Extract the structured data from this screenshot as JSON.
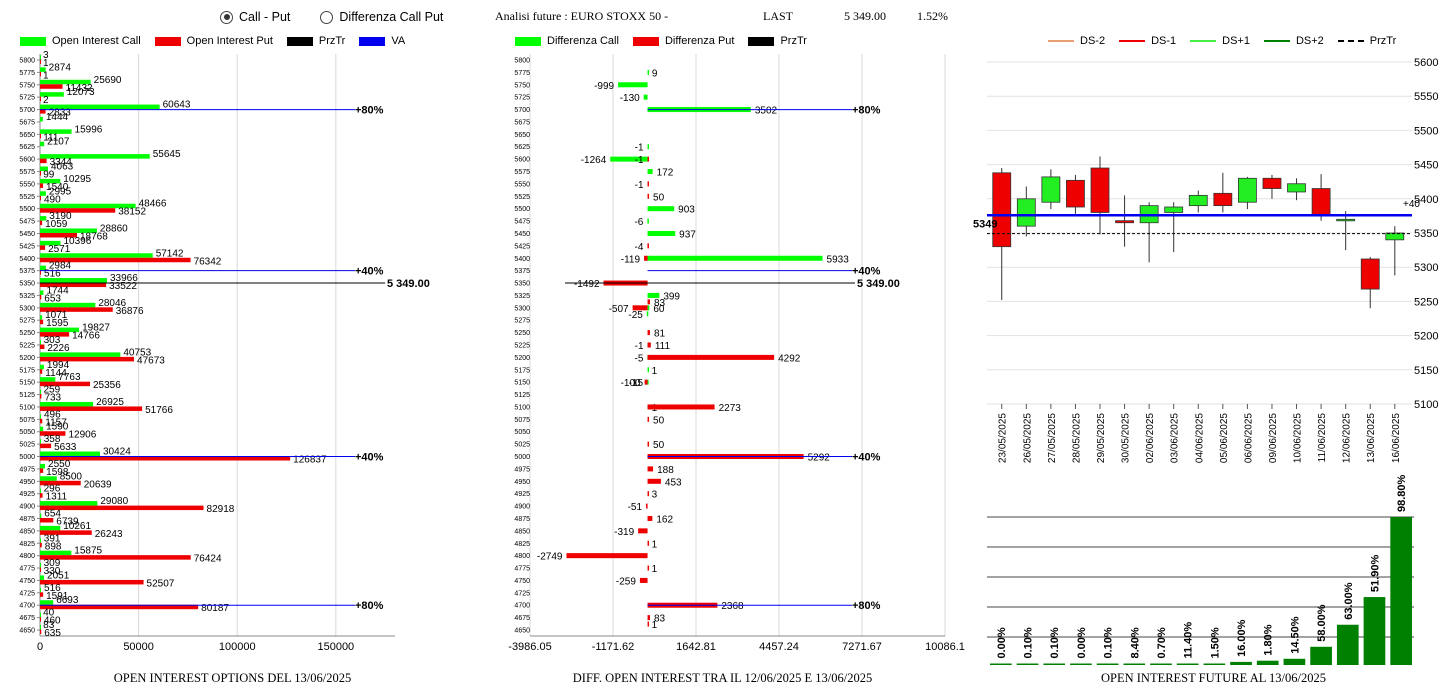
{
  "controls": {
    "radio_call_put": "Call - Put",
    "radio_diff": "Differenza Call Put"
  },
  "header": {
    "title": "Analisi future : EURO STOXX 50 -",
    "last_label": "LAST",
    "last_value": "5 349.00",
    "change": "1.52%"
  },
  "colors": {
    "green": "#00ff00",
    "red": "#ee0000",
    "blue": "#0000ee",
    "darkgreen": "#008000",
    "orange": "#e8a070"
  },
  "chart_data": [
    {
      "type": "bar",
      "orientation": "horizontal",
      "caption": "OPEN INTEREST OPTIONS DEL 13/06/2025",
      "legend": [
        "Open Interest Call",
        "Open Interest Put",
        "PrzTr",
        "VA"
      ],
      "strikes": [
        5800,
        5775,
        5750,
        5725,
        5700,
        5675,
        5650,
        5625,
        5600,
        5575,
        5550,
        5525,
        5500,
        5475,
        5450,
        5425,
        5400,
        5375,
        5350,
        5325,
        5300,
        5275,
        5250,
        5225,
        5200,
        5175,
        5150,
        5125,
        5100,
        5075,
        5050,
        5025,
        5000,
        4975,
        4950,
        4925,
        4900,
        4875,
        4850,
        4825,
        4800,
        4775,
        4750,
        4725,
        4700,
        4675,
        4650
      ],
      "call": [
        3,
        2874,
        25690,
        12073,
        60643,
        1444,
        15996,
        2107,
        55645,
        4063,
        10295,
        2995,
        48466,
        3190,
        28860,
        10396,
        57142,
        2984,
        33966,
        1744,
        28046,
        1071,
        19827,
        303,
        40753,
        1994,
        7763,
        259,
        26925,
        496,
        1590,
        358,
        30424,
        2550,
        8500,
        296,
        29080,
        654,
        10261,
        391,
        15875,
        309,
        2051,
        516,
        6693,
        40,
        83
      ],
      "put": [
        1,
        1,
        11432,
        2,
        2833,
        0,
        111,
        0,
        3344,
        99,
        1540,
        490,
        38152,
        1059,
        18768,
        2571,
        76342,
        516,
        33522,
        653,
        36876,
        1595,
        14766,
        2226,
        47673,
        1144,
        25356,
        733,
        51766,
        1157,
        12906,
        5633,
        126837,
        1598,
        20639,
        1311,
        82918,
        6739,
        26243,
        898,
        76424,
        330,
        52507,
        1591,
        80187,
        460,
        635
      ],
      "xaxis": {
        "ticks": [
          "0",
          "50000",
          "100000",
          "150000"
        ],
        "max": 180000
      },
      "levels": [
        {
          "strike": 5700,
          "label": "80%"
        },
        {
          "strike": 5375,
          "label": "40%"
        },
        {
          "strike": 5000,
          "label": "40%"
        },
        {
          "strike": 4700,
          "label": "80%"
        }
      ],
      "przTr": {
        "strike": 5350,
        "label": "5 349.00"
      }
    },
    {
      "type": "bar",
      "orientation": "horizontal",
      "caption": "DIFF. OPEN INTEREST TRA IL 12/06/2025 E 13/06/2025",
      "legend": [
        "Differenza Call",
        "Differenza Put",
        "PrzTr"
      ],
      "strikes": [
        5800,
        5775,
        5750,
        5725,
        5700,
        5675,
        5650,
        5625,
        5600,
        5575,
        5550,
        5525,
        5500,
        5475,
        5450,
        5425,
        5400,
        5375,
        5350,
        5325,
        5300,
        5275,
        5250,
        5225,
        5200,
        5175,
        5150,
        5125,
        5100,
        5075,
        5050,
        5025,
        5000,
        4975,
        4950,
        4925,
        4900,
        4875,
        4850,
        4825,
        4800,
        4775,
        4750,
        4725,
        4700,
        4675,
        4650
      ],
      "values": [
        {
          "s": 5775,
          "v": 9,
          "c": "call"
        },
        {
          "s": 5750,
          "v": -999,
          "c": "call"
        },
        {
          "s": 5725,
          "v": -130,
          "c": "call"
        },
        {
          "s": 5700,
          "v": 3502,
          "c": "call"
        },
        {
          "s": 5625,
          "v": -1,
          "c": "call"
        },
        {
          "s": 5600,
          "v": -1264,
          "c": "call"
        },
        {
          "s": 5600,
          "v": -1,
          "c": "put"
        },
        {
          "s": 5575,
          "v": 172,
          "c": "call"
        },
        {
          "s": 5550,
          "v": -1,
          "c": "put"
        },
        {
          "s": 5525,
          "v": 50,
          "c": "put"
        },
        {
          "s": 5500,
          "v": 903,
          "c": "call"
        },
        {
          "s": 5475,
          "v": -6,
          "c": "call"
        },
        {
          "s": 5450,
          "v": 937,
          "c": "call"
        },
        {
          "s": 5425,
          "v": -4,
          "c": "put"
        },
        {
          "s": 5400,
          "v": 5933,
          "c": "call"
        },
        {
          "s": 5400,
          "v": -119,
          "c": "put"
        },
        {
          "s": 5350,
          "v": -1492,
          "c": "put"
        },
        {
          "s": 5325,
          "v": 399,
          "c": "call"
        },
        {
          "s": 5312,
          "v": 83,
          "c": "put"
        },
        {
          "s": 5300,
          "v": -507,
          "c": "put"
        },
        {
          "s": 5300,
          "v": 60,
          "c": "call"
        },
        {
          "s": 5288,
          "v": -25,
          "c": "call"
        },
        {
          "s": 5250,
          "v": 81,
          "c": "put"
        },
        {
          "s": 5225,
          "v": -1,
          "c": "call"
        },
        {
          "s": 5225,
          "v": 111,
          "c": "put"
        },
        {
          "s": 5200,
          "v": -5,
          "c": "call"
        },
        {
          "s": 5200,
          "v": 4292,
          "c": "put"
        },
        {
          "s": 5175,
          "v": 1,
          "c": "call"
        },
        {
          "s": 5150,
          "v": -15,
          "c": "call"
        },
        {
          "s": 5150,
          "v": -100,
          "c": "put"
        },
        {
          "s": 5100,
          "v": 1,
          "c": "call"
        },
        {
          "s": 5100,
          "v": 2273,
          "c": "put"
        },
        {
          "s": 5075,
          "v": 50,
          "c": "put"
        },
        {
          "s": 5025,
          "v": 50,
          "c": "put"
        },
        {
          "s": 5000,
          "v": 5292,
          "c": "put"
        },
        {
          "s": 4975,
          "v": 188,
          "c": "put"
        },
        {
          "s": 4950,
          "v": 453,
          "c": "put"
        },
        {
          "s": 4925,
          "v": 3,
          "c": "put"
        },
        {
          "s": 4900,
          "v": -51,
          "c": "put"
        },
        {
          "s": 4875,
          "v": 162,
          "c": "put"
        },
        {
          "s": 4850,
          "v": -319,
          "c": "put"
        },
        {
          "s": 4825,
          "v": 1,
          "c": "put"
        },
        {
          "s": 4800,
          "v": -2749,
          "c": "put"
        },
        {
          "s": 4775,
          "v": 1,
          "c": "put"
        },
        {
          "s": 4750,
          "v": -259,
          "c": "put"
        },
        {
          "s": 4700,
          "v": 2368,
          "c": "put"
        },
        {
          "s": 4675,
          "v": 83,
          "c": "put"
        },
        {
          "s": 4662,
          "v": 1,
          "c": "put"
        }
      ],
      "xaxis": {
        "ticks": [
          "-3986.05",
          "-1171.62",
          "1642.81",
          "4457.24",
          "7271.67",
          "10086.1"
        ],
        "min": -3986.05,
        "max": 10086.1
      },
      "levels": [
        {
          "strike": 5700,
          "label": "80%"
        },
        {
          "strike": 5375,
          "label": "40%"
        },
        {
          "strike": 5000,
          "label": "40%"
        },
        {
          "strike": 4700,
          "label": "80%"
        }
      ],
      "przTr": {
        "strike": 5350,
        "label": "5 349.00"
      }
    },
    {
      "type": "candlestick",
      "legend": [
        "DS-2",
        "DS-1",
        "DS+1",
        "DS+2",
        "PrzTr"
      ],
      "dates": [
        "23/05/2025",
        "26/05/2025",
        "27/05/2025",
        "28/05/2025",
        "29/05/2025",
        "30/05/2025",
        "02/06/2025",
        "03/06/2025",
        "04/06/2025",
        "05/06/2025",
        "06/06/2025",
        "09/06/2025",
        "10/06/2025",
        "11/06/2025",
        "12/06/2025",
        "13/06/2025",
        "16/06/2025"
      ],
      "candles": [
        {
          "o": 5438,
          "c": 5330,
          "h": 5445,
          "l": 5252
        },
        {
          "o": 5360,
          "c": 5400,
          "h": 5418,
          "l": 5345
        },
        {
          "o": 5395,
          "c": 5432,
          "h": 5443,
          "l": 5385
        },
        {
          "o": 5427,
          "c": 5388,
          "h": 5435,
          "l": 5378
        },
        {
          "o": 5445,
          "c": 5380,
          "h": 5462,
          "l": 5348
        },
        {
          "o": 5368,
          "c": 5365,
          "h": 5405,
          "l": 5330
        },
        {
          "o": 5365,
          "c": 5390,
          "h": 5395,
          "l": 5307
        },
        {
          "o": 5380,
          "c": 5388,
          "h": 5395,
          "l": 5322
        },
        {
          "o": 5390,
          "c": 5405,
          "h": 5412,
          "l": 5380
        },
        {
          "o": 5408,
          "c": 5390,
          "h": 5438,
          "l": 5380
        },
        {
          "o": 5395,
          "c": 5430,
          "h": 5432,
          "l": 5385
        },
        {
          "o": 5430,
          "c": 5415,
          "h": 5435,
          "l": 5400
        },
        {
          "o": 5410,
          "c": 5422,
          "h": 5430,
          "l": 5398
        },
        {
          "o": 5415,
          "c": 5375,
          "h": 5436,
          "l": 5368
        },
        {
          "o": 5370,
          "c": 5370,
          "h": 5382,
          "l": 5325
        },
        {
          "o": 5312,
          "c": 5268,
          "h": 5315,
          "l": 5240
        },
        {
          "o": 5340,
          "c": 5350,
          "h": 5360,
          "l": 5288
        }
      ],
      "yaxis": {
        "ticks": [
          "5600",
          "5550",
          "5500",
          "5450",
          "5400",
          "5350",
          "5300",
          "5250",
          "5200",
          "5150",
          "5100"
        ],
        "min": 5100,
        "max": 5600
      },
      "blue_level": 5376,
      "blue_label": "+40",
      "przTr": {
        "value": 5349,
        "label": "5349"
      }
    },
    {
      "type": "bar",
      "caption": "OPEN INTEREST FUTURE AL 13/06/2025",
      "labels": [
        "0.00%",
        "0.10%",
        "0.10%",
        "0.00%",
        "0.10%",
        "8.40%",
        "0.70%",
        "11.40%",
        "1.50%",
        "16.00%",
        "1.80%",
        "14.50%",
        "58.00%",
        "63.00%",
        "51.90%",
        "98.80%"
      ],
      "values": [
        0.0,
        0.1,
        0.1,
        0.0,
        0.1,
        8.4,
        0.7,
        11.4,
        1.5,
        16.0,
        1.8,
        14.5,
        58.0,
        63.0,
        51.9,
        98.8
      ],
      "heights": [
        0.3,
        0.3,
        0.3,
        0.3,
        0.3,
        0.4,
        0.3,
        0.6,
        1.0,
        2.1,
        2.9,
        4.2,
        12.3,
        27.2,
        45.9,
        100
      ]
    }
  ]
}
